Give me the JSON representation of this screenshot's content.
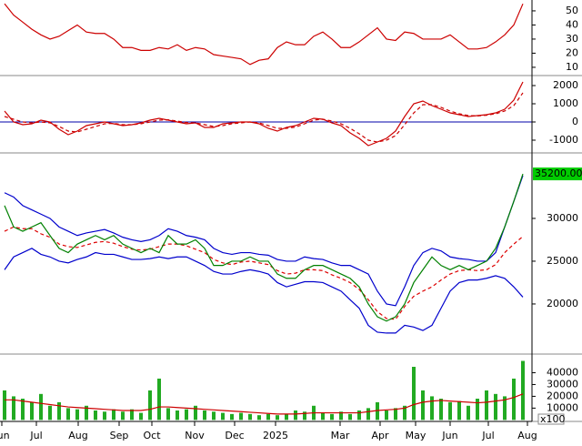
{
  "chart_data": [
    {
      "type": "line",
      "ylim": [
        4.8,
        57.7
      ],
      "yticks": [
        10,
        20,
        30,
        40,
        50
      ],
      "series": [
        {
          "color": "#cc0000",
          "values": [
            55,
            47,
            42,
            37,
            33,
            30,
            32,
            36,
            40,
            35,
            34,
            34,
            30,
            24,
            24,
            22,
            22,
            24,
            23,
            26,
            22,
            24,
            23,
            19,
            18,
            17,
            16,
            12,
            15,
            16,
            24,
            28,
            26,
            26,
            32,
            35,
            30,
            24,
            24,
            28,
            33,
            38,
            30,
            29,
            35,
            34,
            30,
            30,
            30,
            33,
            28,
            23,
            23,
            24,
            28,
            33,
            40,
            55
          ]
        }
      ]
    },
    {
      "type": "line",
      "ylim": [
        -1650,
        2450
      ],
      "yticks": [
        -1000,
        0,
        1000,
        2000
      ],
      "reference_line": 0,
      "reference_color": "#0000aa",
      "series": [
        {
          "color": "#cc0000",
          "values": [
            600,
            0,
            -150,
            -100,
            100,
            0,
            -400,
            -700,
            -500,
            -200,
            -100,
            0,
            -100,
            -200,
            -150,
            -50,
            100,
            200,
            100,
            0,
            -100,
            -50,
            -300,
            -300,
            -100,
            -50,
            0,
            0,
            -100,
            -350,
            -500,
            -300,
            -200,
            0,
            200,
            150,
            -50,
            -200,
            -600,
            -900,
            -1300,
            -1100,
            -900,
            -500,
            300,
            1000,
            1150,
            900,
            700,
            500,
            400,
            300,
            350,
            400,
            500,
            700,
            1200,
            2200
          ]
        },
        {
          "color": "#cc0000",
          "dashed": true,
          "values": [
            300,
            150,
            0,
            -50,
            0,
            -50,
            -250,
            -500,
            -550,
            -400,
            -250,
            -100,
            -80,
            -150,
            -150,
            -100,
            0,
            100,
            120,
            50,
            -30,
            -50,
            -150,
            -250,
            -200,
            -100,
            -50,
            0,
            -50,
            -200,
            -350,
            -350,
            -280,
            -100,
            100,
            150,
            50,
            -100,
            -350,
            -650,
            -1000,
            -1100,
            -1000,
            -750,
            -150,
            500,
            950,
            950,
            800,
            600,
            450,
            350,
            330,
            370,
            450,
            600,
            900,
            1600
          ]
        }
      ]
    },
    {
      "type": "line",
      "ylim": [
        14250,
        37230
      ],
      "yticks": [
        20000,
        25000,
        30000
      ],
      "last_price": {
        "value": 35200,
        "label": "35200.00"
      },
      "series": [
        {
          "color": "#0000cc",
          "values": [
            33000,
            32500,
            31500,
            31000,
            30500,
            30000,
            29000,
            28500,
            28000,
            28300,
            28500,
            28700,
            28300,
            27800,
            27500,
            27300,
            27500,
            28000,
            28800,
            28500,
            28000,
            27800,
            27500,
            26500,
            26000,
            25800,
            26000,
            26000,
            25800,
            25700,
            25200,
            25000,
            25000,
            25500,
            25300,
            25200,
            24800,
            24500,
            24500,
            24000,
            23500,
            21500,
            20000,
            19800,
            22000,
            24500,
            26000,
            26500,
            26200,
            25500,
            25300,
            25200,
            25000,
            25000,
            26000,
            29000,
            32000,
            35000
          ]
        },
        {
          "color": "#0000cc",
          "values": [
            24000,
            25500,
            26000,
            26500,
            25800,
            25500,
            25000,
            24800,
            25200,
            25500,
            26000,
            25800,
            25800,
            25500,
            25200,
            25200,
            25300,
            25500,
            25300,
            25500,
            25500,
            25000,
            24500,
            23800,
            23500,
            23500,
            23800,
            24000,
            23800,
            23500,
            22500,
            22000,
            22300,
            22600,
            22600,
            22500,
            22000,
            21500,
            20500,
            19500,
            17500,
            16700,
            16600,
            16600,
            17500,
            17300,
            16900,
            17500,
            19500,
            21500,
            22500,
            22800,
            22800,
            23000,
            23300,
            23000,
            22000,
            20800
          ]
        },
        {
          "color": "#dd0000",
          "dashed": true,
          "values": [
            28500,
            29000,
            28800,
            28800,
            28200,
            27800,
            27000,
            26700,
            26600,
            26900,
            27200,
            27300,
            27100,
            26700,
            26400,
            26300,
            26400,
            26700,
            27000,
            27000,
            26800,
            26400,
            26000,
            25200,
            24800,
            24600,
            24900,
            25000,
            24800,
            24600,
            23900,
            23500,
            23600,
            24000,
            24000,
            23900,
            23400,
            23000,
            22500,
            21700,
            20500,
            19100,
            18300,
            18200,
            19700,
            20900,
            21500,
            22000,
            22800,
            23500,
            23900,
            24000,
            23900,
            24000,
            24600,
            26000,
            27000,
            27900
          ]
        },
        {
          "color": "#008000",
          "values": [
            31500,
            29000,
            28500,
            29000,
            29500,
            28000,
            26500,
            26000,
            27000,
            27500,
            28000,
            27500,
            28000,
            27000,
            26500,
            26000,
            26500,
            26000,
            28000,
            27000,
            27000,
            27500,
            26500,
            24500,
            24500,
            25000,
            25000,
            25500,
            25000,
            25000,
            23500,
            23000,
            23000,
            24000,
            24500,
            24500,
            24000,
            23500,
            23000,
            22000,
            20000,
            18500,
            18000,
            18500,
            20000,
            22500,
            24000,
            25500,
            24500,
            24000,
            24500,
            24000,
            24500,
            25000,
            26500,
            29000,
            32000,
            35200
          ]
        }
      ]
    },
    {
      "type": "bar",
      "ylim": [
        -500,
        54250
      ],
      "yticks": [
        10000,
        20000,
        30000,
        40000
      ],
      "unit_label": "x100",
      "xlim": [
        -0.5,
        57.5
      ],
      "xticks": [
        {
          "value": -0.3,
          "label": "Jun"
        },
        {
          "value": 3.5,
          "label": "Jul"
        },
        {
          "value": 8.1,
          "label": "Aug"
        },
        {
          "value": 12.6,
          "label": "Sep"
        },
        {
          "value": 16.2,
          "label": "Oct"
        },
        {
          "value": 20.9,
          "label": "Nov"
        },
        {
          "value": 25.3,
          "label": "Dec"
        },
        {
          "value": 29.8,
          "label": "2025"
        },
        {
          "value": 36.9,
          "label": "Mar"
        },
        {
          "value": 41.3,
          "label": "Apr"
        },
        {
          "value": 45.2,
          "label": "May"
        },
        {
          "value": 49,
          "label": "Jun"
        },
        {
          "value": 53.2,
          "label": "Jul"
        },
        {
          "value": 57.5,
          "label": "Aug"
        }
      ],
      "color": "#22aa22",
      "values": [
        25000,
        20000,
        18000,
        15000,
        22000,
        12000,
        15000,
        10000,
        9000,
        12000,
        8000,
        7000,
        9000,
        7000,
        9000,
        6000,
        25000,
        35000,
        10000,
        8000,
        9000,
        12000,
        8000,
        7000,
        6000,
        5000,
        6000,
        5000,
        4000,
        5000,
        4000,
        5000,
        8000,
        7000,
        12000,
        6000,
        5000,
        7000,
        5000,
        8000,
        10000,
        15000,
        8000,
        10000,
        12000,
        45000,
        25000,
        20000,
        18000,
        15000,
        16000,
        12000,
        18000,
        25000,
        22000,
        20000,
        35000,
        50000
      ],
      "series": [
        {
          "color": "#cc0000",
          "values": [
            17000,
            17000,
            16000,
            15000,
            14000,
            13000,
            12000,
            11000,
            10500,
            10000,
            9500,
            9000,
            8500,
            8000,
            8000,
            8000,
            9000,
            11000,
            11000,
            10500,
            10000,
            9500,
            9000,
            8500,
            8000,
            7500,
            7000,
            6500,
            6000,
            5500,
            5000,
            5000,
            5000,
            5500,
            6000,
            6000,
            6000,
            6000,
            6000,
            6000,
            7000,
            8000,
            8500,
            9000,
            10000,
            13000,
            15000,
            16000,
            16500,
            16000,
            15500,
            15000,
            14500,
            15000,
            16000,
            17000,
            19000,
            22000
          ]
        }
      ]
    }
  ]
}
